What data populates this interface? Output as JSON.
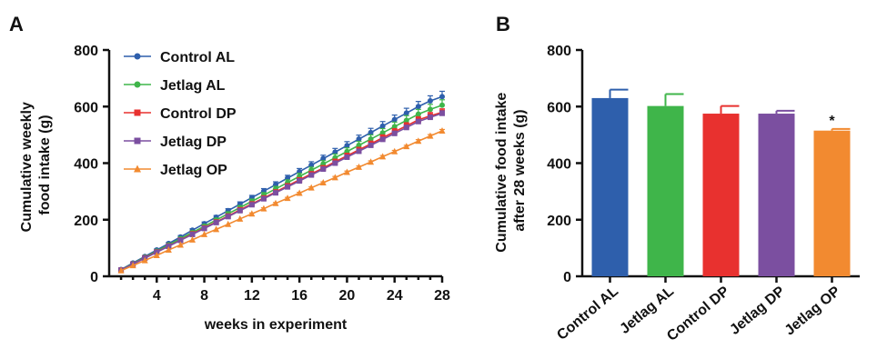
{
  "chart_data": [
    {
      "panel": "A",
      "type": "line",
      "xlabel": "weeks in experiment",
      "ylabel": [
        "Cumulative weekly",
        "food intake (g)"
      ],
      "xlim": [
        0,
        28
      ],
      "ylim": [
        0,
        800
      ],
      "xticks": [
        4,
        8,
        12,
        16,
        20,
        24,
        28
      ],
      "yticks": [
        0,
        200,
        400,
        600,
        800
      ],
      "legend_position": "top-left",
      "x": [
        1,
        2,
        3,
        4,
        5,
        6,
        7,
        8,
        9,
        10,
        11,
        12,
        13,
        14,
        15,
        16,
        17,
        18,
        19,
        20,
        21,
        22,
        23,
        24,
        25,
        26,
        27,
        28
      ],
      "series": [
        {
          "name": "Control AL",
          "color": "#2e5fac",
          "marker": "circle",
          "values": [
            24,
            47,
            70,
            93,
            116,
            139,
            163,
            186,
            209,
            232,
            255,
            278,
            301,
            324,
            347,
            370,
            393,
            416,
            439,
            462,
            485,
            508,
            531,
            554,
            577,
            600,
            620,
            635
          ],
          "error": [
            3,
            3,
            3,
            4,
            4,
            5,
            5,
            6,
            6,
            7,
            8,
            8,
            9,
            10,
            10,
            11,
            12,
            12,
            13,
            14,
            14,
            15,
            16,
            16,
            17,
            18,
            18,
            19
          ]
        },
        {
          "name": "Jetlag AL",
          "color": "#3fb54a",
          "marker": "circle",
          "values": [
            23,
            45,
            67,
            89,
            111,
            133,
            155,
            177,
            199,
            221,
            243,
            265,
            287,
            309,
            331,
            353,
            375,
            397,
            419,
            441,
            463,
            485,
            507,
            529,
            551,
            573,
            590,
            605
          ],
          "error": [
            3,
            3,
            3,
            4,
            4,
            5,
            5,
            6,
            6,
            7,
            7,
            8,
            9,
            9,
            10,
            11,
            11,
            12,
            13,
            13,
            14,
            15,
            15,
            16,
            17,
            17,
            18,
            19
          ]
        },
        {
          "name": "Control DP",
          "color": "#e8312f",
          "marker": "square",
          "values": [
            22,
            43,
            65,
            86,
            107,
            128,
            150,
            171,
            192,
            213,
            235,
            256,
            277,
            298,
            320,
            341,
            362,
            383,
            405,
            426,
            447,
            468,
            490,
            511,
            532,
            553,
            567,
            580
          ],
          "error": [
            2,
            2,
            3,
            3,
            3,
            4,
            4,
            4,
            5,
            5,
            5,
            6,
            6,
            7,
            7,
            7,
            8,
            8,
            9,
            9,
            9,
            10,
            10,
            11,
            11,
            11,
            12,
            12
          ]
        },
        {
          "name": "Jetlag DP",
          "color": "#7b4fa0",
          "marker": "square",
          "values": [
            22,
            43,
            64,
            85,
            106,
            127,
            148,
            169,
            190,
            211,
            232,
            253,
            274,
            295,
            316,
            337,
            358,
            379,
            400,
            421,
            442,
            463,
            484,
            505,
            526,
            547,
            562,
            576
          ],
          "error": [
            2,
            2,
            2,
            3,
            3,
            3,
            3,
            4,
            4,
            4,
            4,
            5,
            5,
            5,
            5,
            6,
            6,
            6,
            6,
            7,
            7,
            7,
            7,
            8,
            8,
            8,
            8,
            9
          ]
        },
        {
          "name": "Jetlag OP",
          "color": "#f28a30",
          "marker": "triangle",
          "values": [
            20,
            38,
            56,
            74,
            93,
            111,
            129,
            148,
            166,
            184,
            203,
            221,
            239,
            258,
            276,
            294,
            313,
            331,
            349,
            368,
            386,
            404,
            423,
            441,
            459,
            478,
            496,
            514
          ],
          "error": [
            1,
            1,
            1,
            1,
            2,
            2,
            2,
            2,
            2,
            2,
            2,
            3,
            3,
            3,
            3,
            3,
            3,
            3,
            4,
            4,
            4,
            4,
            4,
            4,
            4,
            5,
            5,
            5
          ]
        }
      ]
    },
    {
      "panel": "B",
      "type": "bar",
      "ylabel": [
        "Cumulative food intake",
        "after 28 weeks (g)"
      ],
      "ylim": [
        0,
        800
      ],
      "yticks": [
        0,
        200,
        400,
        600,
        800
      ],
      "categories": [
        "Control AL",
        "Jetlag AL",
        "Control DP",
        "Jetlag DP",
        "Jetlag OP"
      ],
      "values": [
        630,
        602,
        575,
        575,
        515
      ],
      "error": [
        30,
        42,
        27,
        10,
        6
      ],
      "colors": [
        "#2e5fac",
        "#3fb54a",
        "#e8312f",
        "#7b4fa0",
        "#f28a30"
      ],
      "annotations": [
        "",
        "",
        "",
        "",
        "*"
      ]
    }
  ]
}
